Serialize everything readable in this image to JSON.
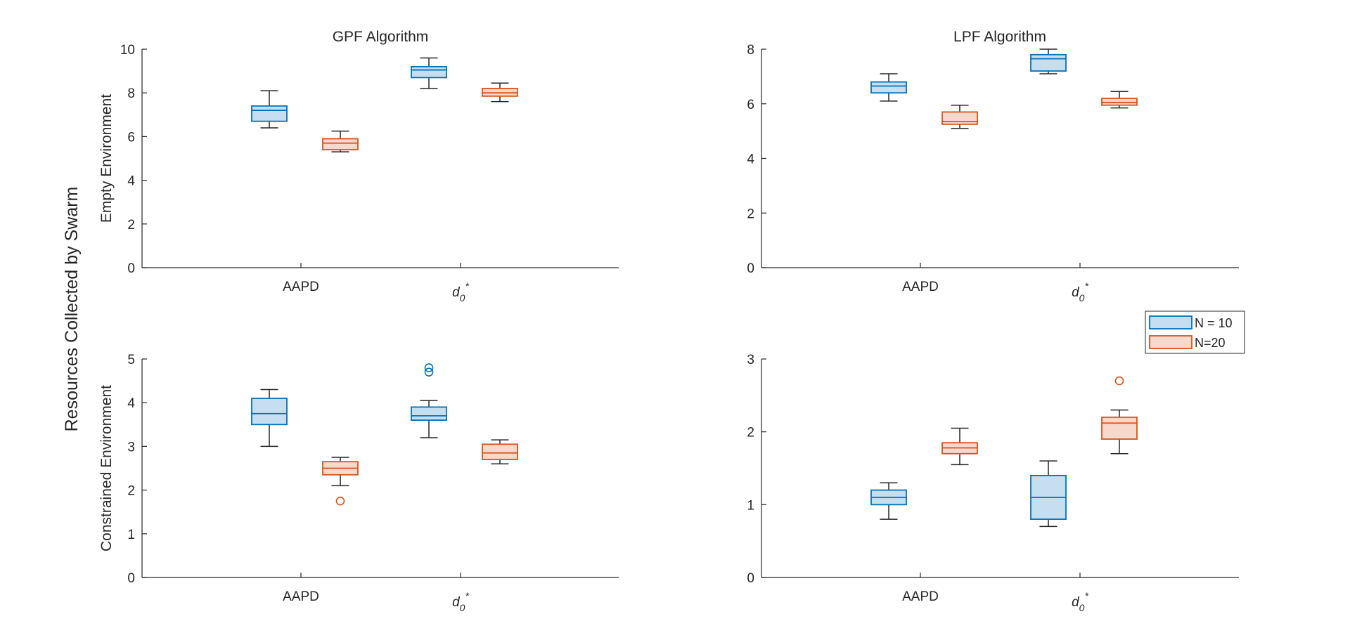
{
  "figure": {
    "ylabel": "Resources Collected by Swarm"
  },
  "legend": {
    "entries": [
      {
        "label": "N = 10",
        "edge": "#0072BD",
        "fill": "#C6DFF0"
      },
      {
        "label": "N=20",
        "edge": "#D95319",
        "fill": "#F7D9CC"
      }
    ]
  },
  "chart_data": [
    {
      "type": "box",
      "title": "GPF Algorithm",
      "ylabel": "Empty Environment",
      "xlabel": "",
      "categories": [
        "AAPD",
        "d0*"
      ],
      "ylim": [
        0,
        10
      ],
      "yticks": [
        0,
        2,
        4,
        6,
        8,
        10
      ],
      "series": [
        {
          "name": "N = 10",
          "boxes": [
            {
              "min": 6.4,
              "q1": 6.7,
              "median": 7.2,
              "q3": 7.4,
              "max": 8.1,
              "outliers": []
            },
            {
              "min": 8.2,
              "q1": 8.7,
              "median": 9.05,
              "q3": 9.2,
              "max": 9.6,
              "outliers": []
            }
          ]
        },
        {
          "name": "N=20",
          "boxes": [
            {
              "min": 5.3,
              "q1": 5.4,
              "median": 5.7,
              "q3": 5.9,
              "max": 6.25,
              "outliers": []
            },
            {
              "min": 7.6,
              "q1": 7.85,
              "median": 8.0,
              "q3": 8.2,
              "max": 8.45,
              "outliers": []
            }
          ]
        }
      ]
    },
    {
      "type": "box",
      "title": "LPF Algorithm",
      "ylabel": "",
      "xlabel": "",
      "categories": [
        "AAPD",
        "d0*"
      ],
      "ylim": [
        0,
        8
      ],
      "yticks": [
        0,
        2,
        4,
        6,
        8
      ],
      "series": [
        {
          "name": "N = 10",
          "boxes": [
            {
              "min": 6.1,
              "q1": 6.4,
              "median": 6.65,
              "q3": 6.8,
              "max": 7.1,
              "outliers": []
            },
            {
              "min": 7.1,
              "q1": 7.2,
              "median": 7.65,
              "q3": 7.8,
              "max": 8.0,
              "outliers": []
            }
          ]
        },
        {
          "name": "N=20",
          "boxes": [
            {
              "min": 5.1,
              "q1": 5.25,
              "median": 5.35,
              "q3": 5.7,
              "max": 5.95,
              "outliers": []
            },
            {
              "min": 5.85,
              "q1": 5.95,
              "median": 6.05,
              "q3": 6.2,
              "max": 6.45,
              "outliers": []
            }
          ]
        }
      ]
    },
    {
      "type": "box",
      "title": "",
      "ylabel": "Constrained Environment",
      "xlabel": "",
      "categories": [
        "AAPD",
        "d0*"
      ],
      "ylim": [
        0,
        5
      ],
      "yticks": [
        0,
        1,
        2,
        3,
        4,
        5
      ],
      "series": [
        {
          "name": "N = 10",
          "boxes": [
            {
              "min": 3.0,
              "q1": 3.5,
              "median": 3.75,
              "q3": 4.1,
              "max": 4.3,
              "outliers": []
            },
            {
              "min": 3.2,
              "q1": 3.6,
              "median": 3.7,
              "q3": 3.9,
              "max": 4.05,
              "outliers": [
                4.7,
                4.8
              ]
            }
          ]
        },
        {
          "name": "N=20",
          "boxes": [
            {
              "min": 2.1,
              "q1": 2.35,
              "median": 2.5,
              "q3": 2.65,
              "max": 2.75,
              "outliers": [
                1.75
              ]
            },
            {
              "min": 2.6,
              "q1": 2.7,
              "median": 2.85,
              "q3": 3.05,
              "max": 3.15,
              "outliers": []
            }
          ]
        }
      ]
    },
    {
      "type": "box",
      "title": "",
      "ylabel": "",
      "xlabel": "",
      "categories": [
        "AAPD",
        "d0*"
      ],
      "ylim": [
        0,
        3
      ],
      "yticks": [
        0,
        1,
        2,
        3
      ],
      "series": [
        {
          "name": "N = 10",
          "boxes": [
            {
              "min": 0.8,
              "q1": 1.0,
              "median": 1.1,
              "q3": 1.2,
              "max": 1.3,
              "outliers": []
            },
            {
              "min": 0.7,
              "q1": 0.8,
              "median": 1.1,
              "q3": 1.4,
              "max": 1.6,
              "outliers": []
            }
          ]
        },
        {
          "name": "N=20",
          "boxes": [
            {
              "min": 1.55,
              "q1": 1.7,
              "median": 1.78,
              "q3": 1.85,
              "max": 2.05,
              "outliers": []
            },
            {
              "min": 1.7,
              "q1": 1.9,
              "median": 2.12,
              "q3": 2.2,
              "max": 2.3,
              "outliers": [
                2.7
              ]
            }
          ]
        }
      ]
    }
  ]
}
